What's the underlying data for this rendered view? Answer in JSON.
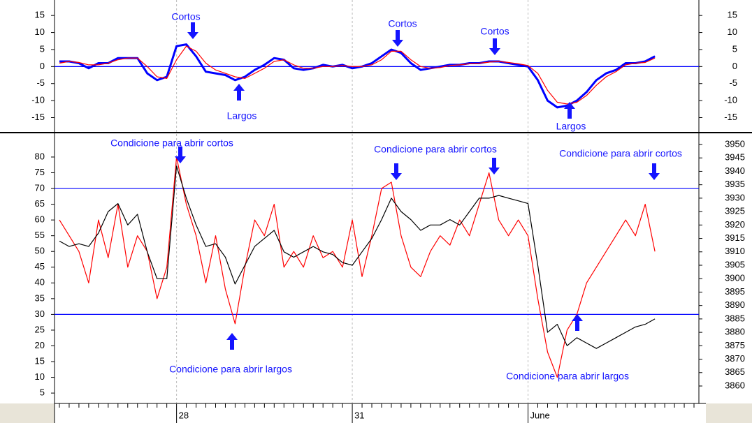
{
  "chart_data": [
    {
      "type": "line",
      "ylim": [
        -19,
        17.5
      ],
      "yticks": [
        15,
        10,
        5,
        0,
        -5,
        -10,
        -15
      ],
      "reference_lines": [
        0
      ],
      "series": [
        {
          "name": null,
          "color": "#0000ff",
          "values": [
            1.5,
            1.5,
            1,
            -0.5,
            1,
            1,
            2.5,
            2.5,
            2.5,
            -2,
            -4,
            -3,
            6,
            6.5,
            3,
            -1.5,
            -2,
            -2.5,
            -4,
            -3,
            -1,
            0.5,
            2.5,
            2,
            -0.5,
            -1,
            -0.5,
            0.5,
            0,
            0.5,
            -0.5,
            0,
            1,
            3,
            5,
            4,
            1,
            -1,
            -0.5,
            0,
            0.5,
            0.5,
            1,
            1,
            1.5,
            1.5,
            1,
            0.5,
            0,
            -4,
            -10,
            -12,
            -11.5,
            -10,
            -7.5,
            -4,
            -2,
            -1,
            1,
            1,
            1.5,
            3,
            null,
            null,
            null,
            null
          ]
        },
        {
          "name": null,
          "color": "#ff0000",
          "values": [
            1,
            1.5,
            1.2,
            0.5,
            0.5,
            1,
            2,
            2.5,
            2.5,
            0,
            -3,
            -3.5,
            2,
            6,
            4.5,
            1,
            -1,
            -2,
            -3,
            -3.5,
            -2,
            -0.5,
            1.5,
            2,
            0.5,
            -0.5,
            -0.5,
            0,
            0,
            0.3,
            0,
            0,
            0.5,
            2,
            4.5,
            4.5,
            2,
            0,
            -0.5,
            -0.3,
            0.3,
            0.5,
            0.8,
            1,
            1.3,
            1.5,
            1.2,
            0.8,
            0.3,
            -2,
            -7,
            -10.5,
            -11,
            -10.5,
            -8.5,
            -5.5,
            -3,
            -1.5,
            0.5,
            1,
            1.2,
            2.5,
            null,
            null,
            null,
            null
          ]
        }
      ],
      "annotations": [
        "Cortos",
        "Largos",
        "Cortos",
        "Cortos",
        "Largos"
      ]
    },
    {
      "type": "line",
      "categories": [
        null,
        null,
        null,
        null,
        null,
        null,
        null,
        null,
        null,
        null,
        null,
        null,
        "28",
        null,
        null,
        null,
        null,
        null,
        null,
        null,
        null,
        null,
        null,
        null,
        null,
        null,
        null,
        null,
        null,
        null,
        "31",
        null,
        null,
        null,
        null,
        null,
        null,
        null,
        null,
        null,
        null,
        null,
        null,
        null,
        null,
        null,
        null,
        null,
        "June",
        null,
        null,
        null,
        null,
        null,
        null,
        null,
        null,
        null,
        null,
        null,
        null,
        null,
        null,
        null,
        null,
        null
      ],
      "ylim": [
        1.7,
        86.2
      ],
      "yticks": [
        80,
        75,
        70,
        65,
        60,
        55,
        50,
        45,
        40,
        35,
        30,
        25,
        20,
        15,
        10,
        5
      ],
      "y2lim": [
        3853.5,
        3952.6
      ],
      "y2ticks": [
        3950,
        3945,
        3940,
        3935,
        3930,
        3925,
        3920,
        3915,
        3910,
        3905,
        3900,
        3895,
        3890,
        3885,
        3880,
        3875,
        3870,
        3865,
        3860
      ],
      "reference_lines": [
        70,
        30
      ],
      "series": [
        {
          "name": null,
          "color": "#ff0000",
          "values": [
            60,
            55,
            50,
            40,
            60,
            48,
            65,
            45,
            55,
            50,
            35,
            45,
            80,
            65,
            55,
            40,
            55,
            38,
            27,
            45,
            60,
            55,
            65,
            45,
            50,
            45,
            55,
            48,
            50,
            45,
            60,
            42,
            55,
            70,
            72,
            55,
            45,
            42,
            50,
            55,
            52,
            60,
            55,
            65,
            75,
            60,
            55,
            60,
            55,
            35,
            18,
            10,
            25,
            30,
            40,
            45,
            50,
            55,
            60,
            55,
            65,
            50,
            null,
            null,
            null,
            null
          ]
        },
        {
          "name": null,
          "color": "#000000",
          "axis": "y2",
          "values": [
            3914,
            3912,
            3913,
            3912,
            3917,
            3925,
            3928,
            3920,
            3924,
            3910,
            3900,
            3900,
            3942,
            3930,
            3920,
            3912,
            3913,
            3908,
            3898,
            3905,
            3912,
            3915,
            3918,
            3910,
            3908,
            3910,
            3912,
            3910,
            3909,
            3906,
            3905,
            3910,
            3915,
            3922,
            3930,
            3925,
            3922,
            3918,
            3920,
            3920,
            3922,
            3920,
            3925,
            3930,
            3930,
            3931,
            3930,
            3929,
            3928,
            3905,
            3880,
            3883,
            3875,
            3878,
            3876,
            3874,
            3876,
            3878,
            3880,
            3882,
            3883,
            3885,
            null,
            null,
            null,
            null
          ]
        }
      ],
      "annotations": [
        "Condicione para abrir cortos",
        "Condicione para abrir largos",
        "Condicione para abrir cortos",
        "Condicione para abrir cortos",
        "Condicione para abrir largos"
      ]
    }
  ]
}
